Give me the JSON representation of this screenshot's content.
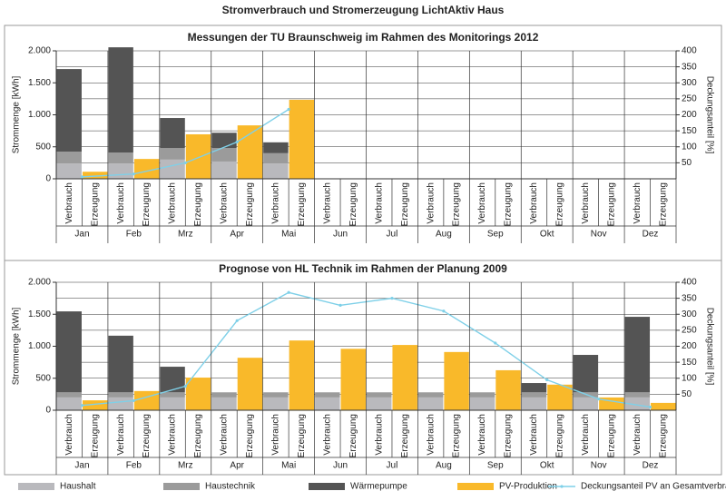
{
  "title": "Stromverbrauch und Stromerzeugung LichtAktiv Haus",
  "chart_data": [
    {
      "type": "bar",
      "title": "Messungen der TU Braunschweig im Rahmen des Monitorings 2012",
      "y_label": "Strommenge [kWh]",
      "y2_label": "Deckungsanteil [%]",
      "categories": [
        "Jan",
        "Feb",
        "Mrz",
        "Apr",
        "Mai",
        "Jun",
        "Jul",
        "Aug",
        "Sep",
        "Okt",
        "Nov",
        "Dez"
      ],
      "subcategories": [
        "Verbrauch",
        "Erzeugung"
      ],
      "ylim": [
        0,
        2000
      ],
      "yticks": [
        {
          "value": 0,
          "label": "0"
        },
        {
          "value": 500,
          "label": "500"
        },
        {
          "value": 1000,
          "label": "1.000"
        },
        {
          "value": 1500,
          "label": "1.500"
        },
        {
          "value": 2000,
          "label": "2.000"
        }
      ],
      "y2lim": [
        0,
        400
      ],
      "y2ticks": [
        50,
        100,
        150,
        200,
        250,
        300,
        350,
        400
      ],
      "grid": true,
      "series": [
        {
          "name": "Haushalt",
          "color": "#b9b9bd",
          "stack": "Verbrauch",
          "values": [
            240,
            240,
            300,
            270,
            240,
            null,
            null,
            null,
            null,
            null,
            null,
            null
          ]
        },
        {
          "name": "Haustechnik",
          "color": "#9b9b9b",
          "stack": "Verbrauch",
          "values": [
            185,
            170,
            180,
            210,
            160,
            null,
            null,
            null,
            null,
            null,
            null,
            null
          ]
        },
        {
          "name": "Wärmepumpe",
          "color": "#545454",
          "stack": "Verbrauch",
          "values": [
            1290,
            1645,
            470,
            240,
            170,
            null,
            null,
            null,
            null,
            null,
            null,
            null
          ]
        },
        {
          "name": "PV-Produktion",
          "color": "#f9b92a",
          "stack": "Erzeugung",
          "values": [
            110,
            310,
            695,
            835,
            1235,
            null,
            null,
            null,
            null,
            null,
            null,
            null
          ]
        },
        {
          "name": "Deckungsanteil PV an Gesamtverbrauch [%]",
          "color": "#7fd0e8",
          "axis": "y2",
          "values": [
            6,
            15,
            50,
            115,
            217,
            null,
            null,
            null,
            null,
            null,
            null,
            null
          ]
        }
      ]
    },
    {
      "type": "bar",
      "title": "Prognose von HL Technik im Rahmen der Planung 2009",
      "y_label": "Strommenge [kWh]",
      "y2_label": "Deckungsanteil [%]",
      "categories": [
        "Jan",
        "Feb",
        "Mrz",
        "Apr",
        "Mai",
        "Jun",
        "Jul",
        "Aug",
        "Sep",
        "Okt",
        "Nov",
        "Dez"
      ],
      "subcategories": [
        "Verbrauch",
        "Erzeugung"
      ],
      "ylim": [
        0,
        2000
      ],
      "yticks": [
        {
          "value": 0,
          "label": "0"
        },
        {
          "value": 500,
          "label": "500"
        },
        {
          "value": 1000,
          "label": "1.000"
        },
        {
          "value": 1500,
          "label": "1.500"
        },
        {
          "value": 2000,
          "label": "2.000"
        }
      ],
      "y2lim": [
        0,
        400
      ],
      "y2ticks": [
        50,
        100,
        150,
        200,
        250,
        300,
        350,
        400
      ],
      "grid": true,
      "series": [
        {
          "name": "Haushalt",
          "color": "#b9b9bd",
          "stack": "Verbrauch",
          "values": [
            200,
            200,
            200,
            200,
            200,
            200,
            200,
            200,
            200,
            200,
            200,
            200
          ]
        },
        {
          "name": "Haustechnik",
          "color": "#9b9b9b",
          "stack": "Verbrauch",
          "values": [
            80,
            80,
            80,
            80,
            80,
            80,
            80,
            80,
            80,
            80,
            80,
            80
          ]
        },
        {
          "name": "Wärmepumpe",
          "color": "#545454",
          "stack": "Verbrauch",
          "values": [
            1265,
            885,
            400,
            0,
            0,
            0,
            0,
            0,
            0,
            145,
            585,
            1180
          ]
        },
        {
          "name": "PV-Produktion",
          "color": "#f9b92a",
          "stack": "Erzeugung",
          "values": [
            155,
            300,
            510,
            820,
            1090,
            960,
            1020,
            910,
            625,
            400,
            200,
            115
          ]
        },
        {
          "name": "Deckungsanteil PV an Gesamtverbrauch [%]",
          "color": "#7fd0e8",
          "axis": "y2",
          "values": [
            15,
            30,
            75,
            280,
            368,
            328,
            350,
            310,
            210,
            95,
            35,
            10
          ]
        }
      ]
    }
  ]
}
